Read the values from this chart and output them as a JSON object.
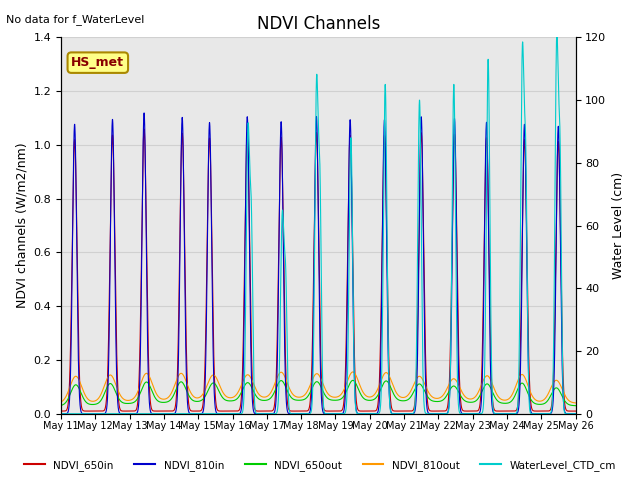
{
  "title": "NDVI Channels",
  "ylabel_left": "NDVI channels (W/m2/nm)",
  "ylabel_right": "Water Level (cm)",
  "top_left_text": "No data for f_WaterLevel",
  "annotation_text": "HS_met",
  "ylim_left": [
    0.0,
    1.4
  ],
  "ylim_right": [
    0,
    120
  ],
  "xtick_labels": [
    "May 11",
    "May 12",
    "May 13",
    "May 14",
    "May 15",
    "May 16",
    "May 17",
    "May 18",
    "May 19",
    "May 20",
    "May 21",
    "May 22",
    "May 23",
    "May 24",
    "May 25",
    "May 26"
  ],
  "yticks_left": [
    0.0,
    0.2,
    0.4,
    0.6,
    0.8,
    1.0,
    1.2,
    1.4
  ],
  "yticks_right": [
    0,
    20,
    40,
    60,
    80,
    100,
    120
  ],
  "legend_entries": [
    "NDVI_650in",
    "NDVI_810in",
    "NDVI_650out",
    "NDVI_810out",
    "WaterLevel_CTD_cm"
  ],
  "legend_colors": [
    "#cc0000",
    "#0000cc",
    "#00cc00",
    "#ff9900",
    "#00cccc"
  ],
  "grid_color": "#d0d0d0",
  "bg_color": "#e8e8e8",
  "n_days": 15,
  "figsize": [
    6.4,
    4.8
  ],
  "dpi": 100
}
